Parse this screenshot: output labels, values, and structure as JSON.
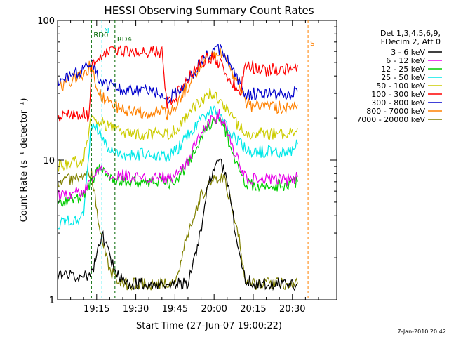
{
  "chart_data": {
    "type": "line",
    "title": "HESSI Observing Summary Count Rates",
    "xlabel": "Start Time (27-Jun-07 19:00:22)",
    "ylabel": "Count Rate (s⁻¹ detector⁻¹)",
    "xlim": [
      0,
      107
    ],
    "ylim": [
      1,
      100
    ],
    "yscale": "log",
    "x_ticks": [
      {
        "value": 15,
        "label": "19:15"
      },
      {
        "value": 30,
        "label": "19:30"
      },
      {
        "value": 45,
        "label": "19:45"
      },
      {
        "value": 60,
        "label": "20:00"
      },
      {
        "value": 75,
        "label": "20:15"
      },
      {
        "value": 90,
        "label": "20:30"
      }
    ],
    "y_ticks": [
      {
        "value": 1,
        "label": "1"
      },
      {
        "value": 10,
        "label": "10"
      },
      {
        "value": 100,
        "label": "100"
      }
    ],
    "legend": {
      "placement": "right",
      "header": [
        "Det 1,3,4,5,6,9,",
        "FDecim 2, Att 0"
      ]
    },
    "series": [
      {
        "name": "3 - 6 keV",
        "color": "#000000",
        "x": [
          0,
          13,
          17,
          22,
          26,
          30,
          35,
          38,
          42,
          46,
          50,
          54,
          58,
          60,
          62,
          64,
          66,
          69,
          72,
          76,
          78,
          83,
          88,
          92
        ],
        "y": [
          1.5,
          1.5,
          3.0,
          1.6,
          1.3,
          1.3,
          1.3,
          1.3,
          1.3,
          1.3,
          1.3,
          2.5,
          7.0,
          9.0,
          9.5,
          8.5,
          5.5,
          2.5,
          1.4,
          1.3,
          1.3,
          1.3,
          1.3,
          1.3
        ]
      },
      {
        "name": "6 - 12 keV",
        "color": "#e800e8",
        "x": [
          0,
          10,
          13,
          16,
          20,
          25,
          30,
          35,
          40,
          42,
          46,
          50,
          54,
          58,
          62,
          64,
          66,
          70,
          72,
          76,
          80,
          85,
          88,
          90,
          92
        ],
        "y": [
          5.5,
          6.0,
          7.5,
          9.0,
          8.0,
          7.8,
          7.6,
          7.6,
          7.6,
          7.4,
          8.0,
          10.0,
          14.0,
          19.0,
          21.0,
          18.0,
          14.0,
          9.0,
          7.5,
          7.2,
          7.2,
          7.2,
          7.2,
          7.4,
          7.6
        ]
      },
      {
        "name": "12 - 25 keV",
        "color": "#00cc00",
        "x": [
          0,
          10,
          13,
          16,
          20,
          25,
          30,
          35,
          40,
          42,
          46,
          50,
          54,
          58,
          62,
          64,
          66,
          70,
          72,
          76,
          80,
          85,
          88,
          90,
          92
        ],
        "y": [
          5.0,
          5.5,
          7.0,
          8.5,
          7.5,
          7.2,
          7.0,
          7.0,
          7.0,
          6.8,
          7.5,
          9.5,
          13.5,
          18.0,
          20.0,
          17.0,
          13.0,
          8.5,
          6.8,
          6.6,
          6.6,
          6.6,
          6.6,
          6.8,
          7.0
        ]
      },
      {
        "name": "25 - 50 keV",
        "color": "#00e8e8",
        "x": [
          0,
          10,
          13,
          15,
          18,
          22,
          26,
          30,
          35,
          40,
          42,
          46,
          50,
          54,
          58,
          62,
          64,
          66,
          70,
          72,
          76,
          80,
          85,
          88,
          90,
          92
        ],
        "y": [
          3.5,
          4.0,
          18.0,
          17.0,
          13.0,
          11.5,
          11.0,
          11.0,
          11.0,
          11.0,
          10.5,
          12.0,
          15.0,
          19.0,
          22.0,
          22.0,
          20.0,
          16.0,
          13.0,
          12.0,
          11.5,
          11.5,
          11.5,
          11.5,
          12.0,
          13.0
        ]
      },
      {
        "name": "50 - 100 keV",
        "color": "#cccc00",
        "x": [
          0,
          10,
          13,
          16,
          20,
          25,
          30,
          35,
          40,
          42,
          46,
          50,
          54,
          58,
          62,
          64,
          66,
          70,
          72,
          76,
          80,
          85,
          88,
          90,
          92
        ],
        "y": [
          9.0,
          10.0,
          21.0,
          19.0,
          17.0,
          16.0,
          15.5,
          15.5,
          15.5,
          15.0,
          17.0,
          21.0,
          26.0,
          30.0,
          28.0,
          25.0,
          21.0,
          17.0,
          16.0,
          15.5,
          15.5,
          15.5,
          15.5,
          16.0,
          17.0
        ]
      },
      {
        "name": "100 - 300 keV",
        "color": "#ff0000",
        "x": [
          0,
          5,
          10,
          12,
          13,
          16,
          20,
          25,
          30,
          35,
          40,
          42,
          46,
          50,
          54,
          58,
          62,
          64,
          66,
          70,
          72,
          76,
          80,
          85,
          88,
          90,
          92
        ],
        "y": [
          20.0,
          21.0,
          22.0,
          20.0,
          45.0,
          52.0,
          63.0,
          61.0,
          60.0,
          60.0,
          59.0,
          25.0,
          30.0,
          38.0,
          48.0,
          55.0,
          50.0,
          45.0,
          38.0,
          30.0,
          50.0,
          45.0,
          44.0,
          45.0,
          45.0,
          47.0,
          48.0
        ]
      },
      {
        "name": "300 - 800 keV",
        "color": "#0000cc",
        "x": [
          0,
          5,
          10,
          13,
          16,
          20,
          25,
          30,
          35,
          40,
          42,
          46,
          50,
          54,
          58,
          62,
          64,
          66,
          70,
          72,
          76,
          80,
          85,
          88,
          90,
          92
        ],
        "y": [
          37.0,
          40.0,
          45.0,
          52.0,
          38.0,
          34.0,
          32.0,
          31.0,
          31.0,
          30.0,
          27.0,
          31.0,
          38.0,
          48.0,
          58.0,
          62.0,
          58.0,
          48.0,
          36.0,
          29.0,
          30.0,
          30.0,
          30.0,
          30.0,
          30.0,
          31.0
        ]
      },
      {
        "name": "800 - 7000 keV",
        "color": "#ff8000",
        "x": [
          0,
          5,
          10,
          13,
          16,
          20,
          25,
          30,
          35,
          40,
          42,
          46,
          50,
          54,
          58,
          62,
          64,
          66,
          70,
          72,
          76,
          80,
          85,
          88,
          90,
          92
        ],
        "y": [
          33.0,
          37.0,
          42.0,
          48.0,
          30.0,
          25.0,
          23.0,
          22.0,
          22.0,
          22.0,
          21.0,
          26.0,
          34.0,
          45.0,
          55.0,
          58.0,
          55.0,
          45.0,
          33.0,
          25.0,
          24.0,
          24.0,
          24.0,
          24.0,
          24.0,
          25.0
        ]
      },
      {
        "name": "7000 - 20000 keV",
        "color": "#808000",
        "x": [
          0,
          10,
          13,
          16,
          20,
          25,
          30,
          35,
          40,
          42,
          46,
          50,
          54,
          58,
          62,
          64,
          66,
          70,
          72,
          76,
          80,
          85,
          88,
          90,
          92
        ],
        "y": [
          7.0,
          7.5,
          8.0,
          3.5,
          1.6,
          1.3,
          1.3,
          1.3,
          1.3,
          1.3,
          1.5,
          3.0,
          5.0,
          7.0,
          7.5,
          7.0,
          5.5,
          2.5,
          1.3,
          1.3,
          1.3,
          1.3,
          1.3,
          1.3,
          1.3
        ]
      }
    ],
    "annotations": [
      {
        "label": "N",
        "x": 17
      },
      {
        "label": "RD0",
        "x": 13
      },
      {
        "label": "RD4",
        "x": 22
      },
      {
        "label": "S",
        "x": 96
      }
    ],
    "timestamp": "7-Jan-2010 20:42"
  }
}
